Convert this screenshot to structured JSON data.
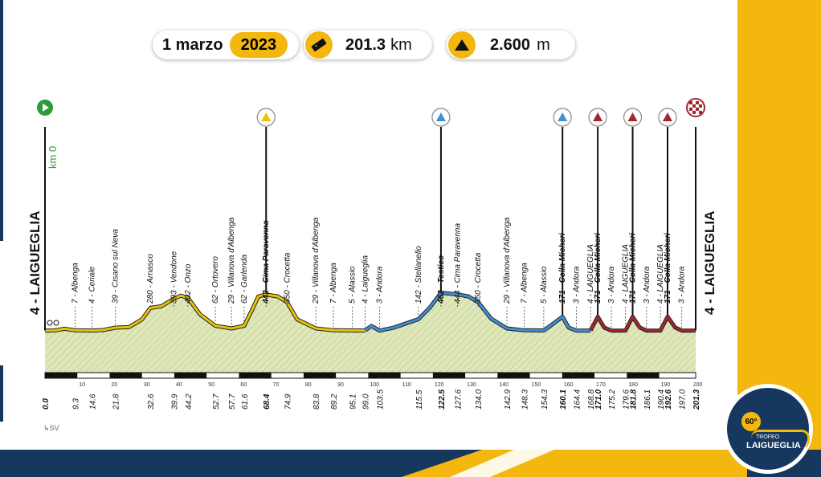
{
  "header": {
    "date": "1 marzo",
    "year": "2023",
    "distance_value": "201.3",
    "distance_unit": "km",
    "climb_value": "2.600",
    "climb_unit": "m",
    "distance_icon": "ruler-icon",
    "climb_icon": "mountain-icon"
  },
  "start": {
    "name": "4 - LAIGUEGLIA",
    "km0": "km 0",
    "icon": "play-icon"
  },
  "finish": {
    "name": "4 - LAIGUEGLIA",
    "icon": "checkered-flag-icon"
  },
  "north_arrow": "SV",
  "logo": {
    "edition": "60°",
    "line1": "TROFEO",
    "line2": "LAIGUEGLIA"
  },
  "colors": {
    "accent": "#f3b70e",
    "navy": "#16375e",
    "climb_yellow": "#e8c20c",
    "climb_blue": "#3f8fd1",
    "climb_red": "#a3262a",
    "fill": "#dde7b8"
  },
  "chart_data": {
    "type": "area",
    "xlim": [
      0,
      201.3
    ],
    "km_ticks": [
      "10",
      "20",
      "30",
      "40",
      "50",
      "60",
      "70",
      "80",
      "90",
      "100",
      "110",
      "120",
      "130",
      "140",
      "150",
      "160",
      "170",
      "180",
      "190",
      "200"
    ],
    "profile": [
      [
        0,
        4
      ],
      [
        3,
        5
      ],
      [
        6,
        25
      ],
      [
        9.3,
        7
      ],
      [
        14.6,
        4
      ],
      [
        18,
        10
      ],
      [
        21.8,
        39
      ],
      [
        26,
        45
      ],
      [
        30,
        140
      ],
      [
        32.6,
        280
      ],
      [
        36,
        300
      ],
      [
        39.9,
        393
      ],
      [
        42,
        430
      ],
      [
        44.2,
        402
      ],
      [
        48,
        200
      ],
      [
        52.7,
        62
      ],
      [
        57.7,
        29
      ],
      [
        61.6,
        62
      ],
      [
        64,
        250
      ],
      [
        66,
        420
      ],
      [
        68.4,
        442
      ],
      [
        72,
        420
      ],
      [
        74.9,
        350
      ],
      [
        78,
        140
      ],
      [
        83.8,
        29
      ],
      [
        89.2,
        7
      ],
      [
        95.1,
        5
      ],
      [
        99,
        4
      ],
      [
        101,
        60
      ],
      [
        103.5,
        3
      ],
      [
        108,
        40
      ],
      [
        115.5,
        142
      ],
      [
        119,
        280
      ],
      [
        122.5,
        462
      ],
      [
        125,
        455
      ],
      [
        127.6,
        444
      ],
      [
        131,
        420
      ],
      [
        134,
        350
      ],
      [
        138,
        150
      ],
      [
        142.9,
        29
      ],
      [
        148.3,
        7
      ],
      [
        154.3,
        5
      ],
      [
        157,
        80
      ],
      [
        160.1,
        171
      ],
      [
        162,
        40
      ],
      [
        164.4,
        3
      ],
      [
        168.8,
        4
      ],
      [
        171,
        171
      ],
      [
        173,
        40
      ],
      [
        175.2,
        3
      ],
      [
        179.6,
        4
      ],
      [
        181.8,
        171
      ],
      [
        184,
        40
      ],
      [
        186.1,
        3
      ],
      [
        190.4,
        4
      ],
      [
        192.6,
        171
      ],
      [
        195,
        40
      ],
      [
        197,
        3
      ],
      [
        201.3,
        4
      ]
    ],
    "climbs": [
      {
        "name": "Cima Paravenna",
        "km": 68.4,
        "alt": 442,
        "category": "yellow"
      },
      {
        "name": "Testico",
        "km": 122.5,
        "alt": 462,
        "category": "blue"
      },
      {
        "name": "Colla Micheri",
        "km": 160.1,
        "alt": 171,
        "category": "blue"
      },
      {
        "name": "Colla Micheri",
        "km": 171.0,
        "alt": 171,
        "category": "red"
      },
      {
        "name": "Colla Micheri",
        "km": 181.8,
        "alt": 171,
        "category": "red"
      },
      {
        "name": "Colla Micheri",
        "km": 192.6,
        "alt": 171,
        "category": "red"
      }
    ],
    "segments": [
      {
        "from": 0,
        "to": 99,
        "color": "yellow"
      },
      {
        "from": 99,
        "to": 168.8,
        "color": "blue"
      },
      {
        "from": 168.8,
        "to": 201.3,
        "color": "red"
      }
    ],
    "waypoints": [
      {
        "km": "0.0",
        "label": "",
        "bold": true
      },
      {
        "km": "9.3",
        "label": "7 - Albenga",
        "bold": false
      },
      {
        "km": "14.6",
        "label": "4 - Ceriale",
        "bold": false
      },
      {
        "km": "21.8",
        "label": "39 - Cisano sul Neva",
        "bold": false
      },
      {
        "km": "32.6",
        "label": "280 - Arnasco",
        "bold": false
      },
      {
        "km": "39.9",
        "label": "393 - Vendone",
        "bold": false
      },
      {
        "km": "44.2",
        "label": "402 - Onzo",
        "bold": false
      },
      {
        "km": "52.7",
        "label": "62 - Ortovero",
        "bold": false
      },
      {
        "km": "57.7",
        "label": "29 - Villanova d'Albenga",
        "bold": false
      },
      {
        "km": "61.6",
        "label": "62 - Garlenda",
        "bold": false
      },
      {
        "km": "68.4",
        "label": "442 - Cima Paravenna",
        "bold": true
      },
      {
        "km": "74.9",
        "label": "350 - Crocetta",
        "bold": false
      },
      {
        "km": "83.8",
        "label": "29 - Villanova d'Albenga",
        "bold": false
      },
      {
        "km": "89.2",
        "label": "7 - Albenga",
        "bold": false
      },
      {
        "km": "95.1",
        "label": "5 - Alassio",
        "bold": false
      },
      {
        "km": "99.0",
        "label": "4 - Laigueglia",
        "bold": false
      },
      {
        "km": "103.5",
        "label": "3 - Andora",
        "bold": false
      },
      {
        "km": "115.5",
        "label": "142 - Stellanello",
        "bold": false
      },
      {
        "km": "122.5",
        "label": "462 - Testico",
        "bold": true
      },
      {
        "km": "127.6",
        "label": "444 - Cima Paravenna",
        "bold": false
      },
      {
        "km": "134.0",
        "label": "350 - Crocetta",
        "bold": false
      },
      {
        "km": "142.9",
        "label": "29 - Villanova d'Albenga",
        "bold": false
      },
      {
        "km": "148.3",
        "label": "7 - Albenga",
        "bold": false
      },
      {
        "km": "154.3",
        "label": "5 - Alassio",
        "bold": false
      },
      {
        "km": "160.1",
        "label": "171 - Colla Micheri",
        "bold": true
      },
      {
        "km": "164.4",
        "label": "3 - Andora",
        "bold": false
      },
      {
        "km": "168.8",
        "label": "4 - LAIGUEGLIA",
        "bold": false
      },
      {
        "km": "171.0",
        "label": "171 - Colla Micheri",
        "bold": true
      },
      {
        "km": "175.2",
        "label": "3 - Andora",
        "bold": false
      },
      {
        "km": "179.6",
        "label": "4 - LAIGUEGLIA",
        "bold": false
      },
      {
        "km": "181.8",
        "label": "171 - Colla Micheri",
        "bold": true
      },
      {
        "km": "186.1",
        "label": "3 - Andora",
        "bold": false
      },
      {
        "km": "190.4",
        "label": "4 - LAIGUEGLIA",
        "bold": false
      },
      {
        "km": "192.6",
        "label": "171 - Colla Micheri",
        "bold": true
      },
      {
        "km": "197.0",
        "label": "3 - Andora",
        "bold": false
      },
      {
        "km": "201.3",
        "label": "",
        "bold": true
      }
    ]
  }
}
